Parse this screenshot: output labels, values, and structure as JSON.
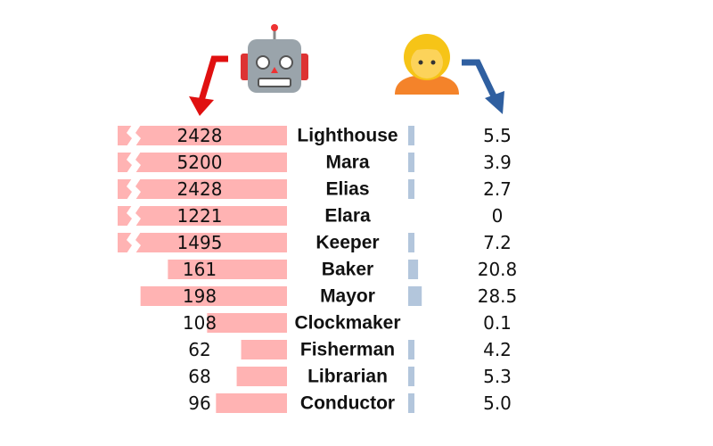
{
  "chart_data": {
    "type": "bar",
    "categories": [
      "Lighthouse",
      "Mara",
      "Elias",
      "Elara",
      "Keeper",
      "Baker",
      "Mayor",
      "Clockmaker",
      "Fisherman",
      "Librarian",
      "Conductor"
    ],
    "series": [
      {
        "color": "#ffb3b3",
        "xlim": [
          0,
          200
        ],
        "values": [
          2428,
          5200,
          2428,
          1221,
          1495,
          161,
          198,
          108,
          62,
          68,
          96
        ]
      },
      {
        "color": "#b3c6dc",
        "xlim": [
          0,
          30
        ],
        "values": [
          5.5,
          3.9,
          2.7,
          0,
          7.2,
          20.8,
          28.5,
          0.1,
          4.2,
          5.3,
          5.0
        ],
        "value_labels": [
          "5.5",
          "3.9",
          "2.7",
          "0",
          "7.2",
          "20.8",
          "28.5",
          "0.1",
          "4.2",
          "5.3",
          "5.0"
        ]
      }
    ]
  }
}
